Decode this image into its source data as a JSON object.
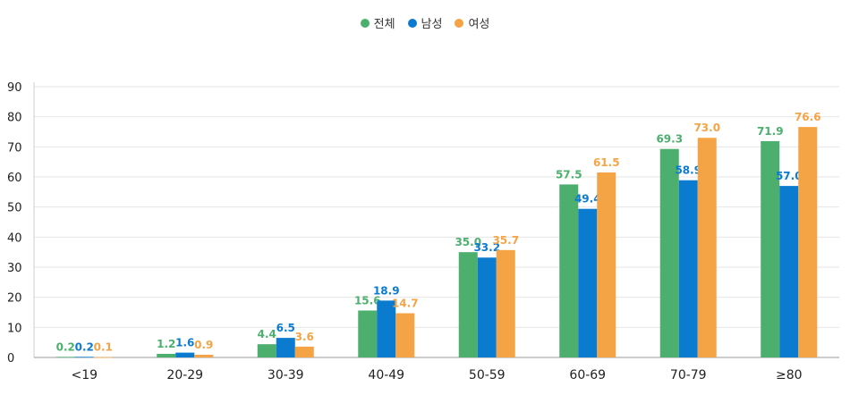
{
  "chart_data": {
    "type": "bar",
    "categories": [
      "<19",
      "20-29",
      "30-39",
      "40-49",
      "50-59",
      "60-69",
      "70-79",
      "≥80"
    ],
    "series": [
      {
        "name": "전체",
        "color": "#4caf6e",
        "values": [
          0.2,
          1.2,
          4.4,
          15.6,
          35.0,
          57.5,
          69.3,
          71.9
        ],
        "labels": [
          "0.2",
          "1.2",
          "4.4",
          "15.6",
          "35.0",
          "57.5",
          "69.3",
          "71.9"
        ]
      },
      {
        "name": "남성",
        "color": "#0b7bcf",
        "values": [
          0.2,
          1.6,
          6.5,
          18.9,
          33.2,
          49.4,
          58.9,
          57.0
        ],
        "labels": [
          "0.2",
          "1.6",
          "6.5",
          "18.9",
          "33.2",
          "49.4",
          "58.9",
          "57.0"
        ]
      },
      {
        "name": "여성",
        "color": "#f5a445",
        "values": [
          0.1,
          0.9,
          3.6,
          14.7,
          35.7,
          61.5,
          73.0,
          76.6
        ],
        "labels": [
          "0.1",
          "0.9",
          "3.6",
          "14.7",
          "35.7",
          "61.5",
          "73.0",
          "76.6"
        ]
      }
    ],
    "yticks": [
      "0",
      "10",
      "20",
      "30",
      "40",
      "50",
      "60",
      "70",
      "80",
      "90"
    ],
    "ylim": [
      0,
      90
    ],
    "grid": true,
    "legend_position": "top-center"
  }
}
